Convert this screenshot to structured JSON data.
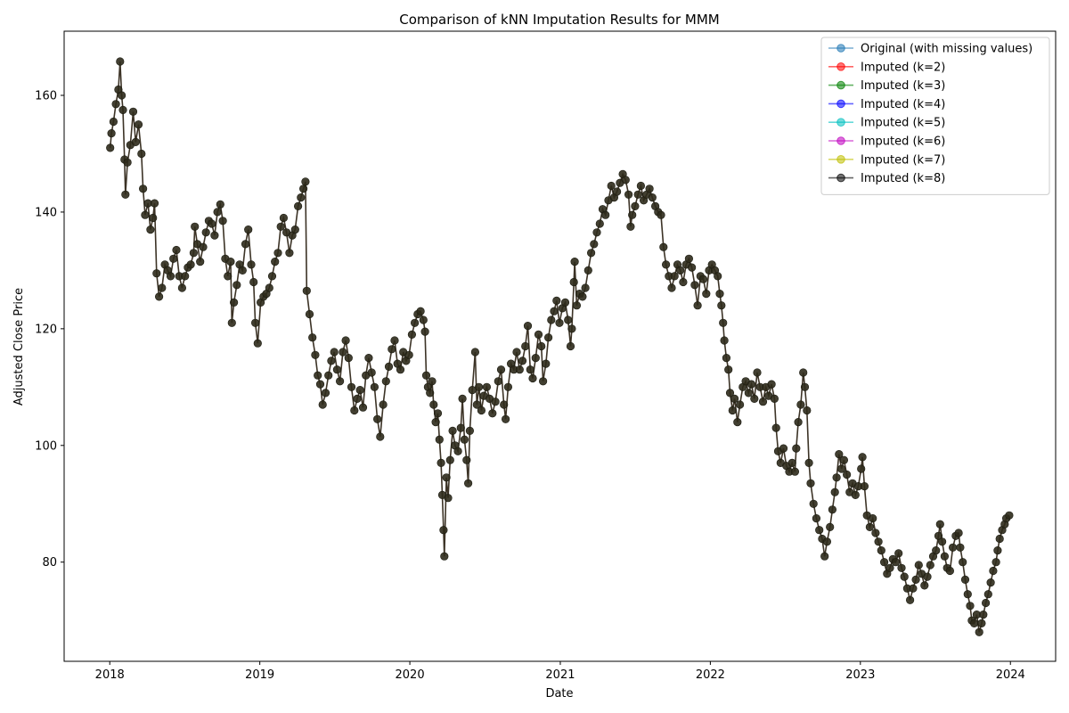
{
  "chart_data": {
    "type": "line",
    "title": "Comparison of kNN Imputation Results for MMM",
    "xlabel": "Date",
    "ylabel": "Adjusted Close Price",
    "xlim": [
      "2017-09-12",
      "2024-04-20"
    ],
    "ylim": [
      63,
      171
    ],
    "x_ticks": [
      "2018",
      "2019",
      "2020",
      "2021",
      "2022",
      "2023",
      "2024"
    ],
    "y_ticks": [
      80,
      100,
      120,
      140,
      160
    ],
    "grid": false,
    "legend_position": "top-right",
    "legend": [
      {
        "label": "Original (with missing values)",
        "color": "#1f77b4"
      },
      {
        "label": "Imputed (k=2)",
        "color": "#ff0000"
      },
      {
        "label": "Imputed (k=3)",
        "color": "#008000"
      },
      {
        "label": "Imputed (k=4)",
        "color": "#0000ff"
      },
      {
        "label": "Imputed (k=5)",
        "color": "#00bfbf"
      },
      {
        "label": "Imputed (k=6)",
        "color": "#bf00bf"
      },
      {
        "label": "Imputed (k=7)",
        "color": "#bfbf00"
      },
      {
        "label": "Imputed (k=8)",
        "color": "#000000"
      }
    ],
    "points": [
      [
        "2018-01-02",
        151
      ],
      [
        "2018-01-05",
        153.5
      ],
      [
        "2018-01-10",
        155.5
      ],
      [
        "2018-01-16",
        158.5
      ],
      [
        "2018-01-22",
        161
      ],
      [
        "2018-01-26",
        165.8
      ],
      [
        "2018-01-30",
        160
      ],
      [
        "2018-02-02",
        157.5
      ],
      [
        "2018-02-06",
        149
      ],
      [
        "2018-02-08",
        143
      ],
      [
        "2018-02-13",
        148.5
      ],
      [
        "2018-02-20",
        151.5
      ],
      [
        "2018-02-27",
        157.2
      ],
      [
        "2018-03-05",
        152
      ],
      [
        "2018-03-12",
        155
      ],
      [
        "2018-03-19",
        150
      ],
      [
        "2018-03-23",
        144
      ],
      [
        "2018-03-28",
        139.5
      ],
      [
        "2018-04-04",
        141.5
      ],
      [
        "2018-04-10",
        137
      ],
      [
        "2018-04-16",
        139
      ],
      [
        "2018-04-20",
        141.5
      ],
      [
        "2018-04-25",
        129.5
      ],
      [
        "2018-05-01",
        125.5
      ],
      [
        "2018-05-08",
        127
      ],
      [
        "2018-05-15",
        131
      ],
      [
        "2018-05-22",
        130
      ],
      [
        "2018-05-29",
        129
      ],
      [
        "2018-06-05",
        132
      ],
      [
        "2018-06-12",
        133.5
      ],
      [
        "2018-06-19",
        129
      ],
      [
        "2018-06-26",
        127
      ],
      [
        "2018-07-03",
        129
      ],
      [
        "2018-07-10",
        130.5
      ],
      [
        "2018-07-17",
        131
      ],
      [
        "2018-07-24",
        133
      ],
      [
        "2018-07-27",
        137.5
      ],
      [
        "2018-08-02",
        134.5
      ],
      [
        "2018-08-09",
        131.5
      ],
      [
        "2018-08-16",
        134
      ],
      [
        "2018-08-23",
        136.5
      ],
      [
        "2018-08-30",
        138.5
      ],
      [
        "2018-09-06",
        138
      ],
      [
        "2018-09-13",
        136
      ],
      [
        "2018-09-20",
        140
      ],
      [
        "2018-09-27",
        141.3
      ],
      [
        "2018-10-03",
        138.5
      ],
      [
        "2018-10-09",
        132
      ],
      [
        "2018-10-15",
        129
      ],
      [
        "2018-10-22",
        131.5
      ],
      [
        "2018-10-25",
        121
      ],
      [
        "2018-10-30",
        124.5
      ],
      [
        "2018-11-06",
        127.5
      ],
      [
        "2018-11-13",
        131
      ],
      [
        "2018-11-20",
        130
      ],
      [
        "2018-11-27",
        134.5
      ],
      [
        "2018-12-04",
        137
      ],
      [
        "2018-12-11",
        131
      ],
      [
        "2018-12-17",
        128
      ],
      [
        "2018-12-21",
        121
      ],
      [
        "2018-12-27",
        117.5
      ],
      [
        "2019-01-03",
        124.5
      ],
      [
        "2019-01-10",
        125.5
      ],
      [
        "2019-01-17",
        126
      ],
      [
        "2019-01-24",
        127
      ],
      [
        "2019-01-31",
        129
      ],
      [
        "2019-02-07",
        131.5
      ],
      [
        "2019-02-14",
        133
      ],
      [
        "2019-02-21",
        137.5
      ],
      [
        "2019-02-28",
        139
      ],
      [
        "2019-03-07",
        136.5
      ],
      [
        "2019-03-14",
        133
      ],
      [
        "2019-03-21",
        136
      ],
      [
        "2019-03-28",
        137
      ],
      [
        "2019-04-04",
        141
      ],
      [
        "2019-04-11",
        142.5
      ],
      [
        "2019-04-17",
        144
      ],
      [
        "2019-04-22",
        145.2
      ],
      [
        "2019-04-25",
        126.5
      ],
      [
        "2019-05-02",
        122.5
      ],
      [
        "2019-05-09",
        118.5
      ],
      [
        "2019-05-16",
        115.5
      ],
      [
        "2019-05-22",
        112
      ],
      [
        "2019-05-28",
        110.5
      ],
      [
        "2019-06-03",
        107
      ],
      [
        "2019-06-10",
        109
      ],
      [
        "2019-06-17",
        112
      ],
      [
        "2019-06-24",
        114.5
      ],
      [
        "2019-07-01",
        116
      ],
      [
        "2019-07-08",
        113
      ],
      [
        "2019-07-15",
        111
      ],
      [
        "2019-07-22",
        116
      ],
      [
        "2019-07-29",
        118
      ],
      [
        "2019-08-05",
        115
      ],
      [
        "2019-08-12",
        110
      ],
      [
        "2019-08-19",
        106
      ],
      [
        "2019-08-26",
        108
      ],
      [
        "2019-09-02",
        109.5
      ],
      [
        "2019-09-09",
        106.5
      ],
      [
        "2019-09-16",
        112
      ],
      [
        "2019-09-23",
        115
      ],
      [
        "2019-09-30",
        112.5
      ],
      [
        "2019-10-07",
        110
      ],
      [
        "2019-10-14",
        104.5
      ],
      [
        "2019-10-21",
        101.5
      ],
      [
        "2019-10-28",
        107
      ],
      [
        "2019-11-04",
        111
      ],
      [
        "2019-11-11",
        113.5
      ],
      [
        "2019-11-18",
        116.5
      ],
      [
        "2019-11-25",
        118
      ],
      [
        "2019-12-02",
        114
      ],
      [
        "2019-12-09",
        113
      ],
      [
        "2019-12-16",
        116
      ],
      [
        "2019-12-23",
        114.5
      ],
      [
        "2019-12-30",
        115.5
      ],
      [
        "2020-01-06",
        119
      ],
      [
        "2020-01-13",
        121
      ],
      [
        "2020-01-20",
        122.5
      ],
      [
        "2020-01-27",
        123
      ],
      [
        "2020-02-03",
        121.5
      ],
      [
        "2020-02-07",
        119.5
      ],
      [
        "2020-02-10",
        112
      ],
      [
        "2020-02-14",
        110
      ],
      [
        "2020-02-19",
        109
      ],
      [
        "2020-02-24",
        111
      ],
      [
        "2020-02-28",
        107
      ],
      [
        "2020-03-04",
        104
      ],
      [
        "2020-03-09",
        105.5
      ],
      [
        "2020-03-13",
        101
      ],
      [
        "2020-03-17",
        97
      ],
      [
        "2020-03-20",
        91.5
      ],
      [
        "2020-03-23",
        85.5
      ],
      [
        "2020-03-25",
        81
      ],
      [
        "2020-03-30",
        94.5
      ],
      [
        "2020-04-03",
        91
      ],
      [
        "2020-04-08",
        97.5
      ],
      [
        "2020-04-14",
        102.5
      ],
      [
        "2020-04-20",
        100
      ],
      [
        "2020-04-27",
        99
      ],
      [
        "2020-05-04",
        103
      ],
      [
        "2020-05-08",
        108
      ],
      [
        "2020-05-13",
        101
      ],
      [
        "2020-05-18",
        97.5
      ],
      [
        "2020-05-22",
        93.5
      ],
      [
        "2020-05-26",
        102.5
      ],
      [
        "2020-06-01",
        109.5
      ],
      [
        "2020-06-08",
        116
      ],
      [
        "2020-06-12",
        107
      ],
      [
        "2020-06-17",
        110
      ],
      [
        "2020-06-23",
        106
      ],
      [
        "2020-06-29",
        108.5
      ],
      [
        "2020-07-06",
        110
      ],
      [
        "2020-07-13",
        108
      ],
      [
        "2020-07-20",
        105.5
      ],
      [
        "2020-07-27",
        107.5
      ],
      [
        "2020-08-03",
        111
      ],
      [
        "2020-08-10",
        113
      ],
      [
        "2020-08-17",
        107
      ],
      [
        "2020-08-21",
        104.5
      ],
      [
        "2020-08-27",
        110
      ],
      [
        "2020-09-03",
        114
      ],
      [
        "2020-09-10",
        113
      ],
      [
        "2020-09-17",
        116
      ],
      [
        "2020-09-24",
        113
      ],
      [
        "2020-10-01",
        114.5
      ],
      [
        "2020-10-08",
        117
      ],
      [
        "2020-10-14",
        120.5
      ],
      [
        "2020-10-20",
        113
      ],
      [
        "2020-10-26",
        111.5
      ],
      [
        "2020-11-02",
        115
      ],
      [
        "2020-11-09",
        119
      ],
      [
        "2020-11-16",
        117
      ],
      [
        "2020-11-20",
        111
      ],
      [
        "2020-11-27",
        114
      ],
      [
        "2020-12-03",
        118.5
      ],
      [
        "2020-12-10",
        121.5
      ],
      [
        "2020-12-17",
        123
      ],
      [
        "2020-12-23",
        124.8
      ],
      [
        "2020-12-30",
        121
      ],
      [
        "2021-01-06",
        123.5
      ],
      [
        "2021-01-13",
        124.5
      ],
      [
        "2021-01-20",
        121.5
      ],
      [
        "2021-01-26",
        117
      ],
      [
        "2021-01-29",
        120
      ],
      [
        "2021-02-03",
        128
      ],
      [
        "2021-02-05",
        131.5
      ],
      [
        "2021-02-10",
        124
      ],
      [
        "2021-02-17",
        126
      ],
      [
        "2021-02-24",
        125.5
      ],
      [
        "2021-03-03",
        127
      ],
      [
        "2021-03-10",
        130
      ],
      [
        "2021-03-17",
        133
      ],
      [
        "2021-03-24",
        134.5
      ],
      [
        "2021-03-31",
        136.5
      ],
      [
        "2021-04-07",
        138
      ],
      [
        "2021-04-14",
        140.5
      ],
      [
        "2021-04-21",
        139.5
      ],
      [
        "2021-04-28",
        142
      ],
      [
        "2021-05-05",
        144.5
      ],
      [
        "2021-05-12",
        142.5
      ],
      [
        "2021-05-19",
        143.5
      ],
      [
        "2021-05-26",
        145
      ],
      [
        "2021-06-02",
        146.5
      ],
      [
        "2021-06-09",
        145.5
      ],
      [
        "2021-06-16",
        143
      ],
      [
        "2021-06-21",
        137.5
      ],
      [
        "2021-06-25",
        139.5
      ],
      [
        "2021-07-02",
        141
      ],
      [
        "2021-07-09",
        143
      ],
      [
        "2021-07-16",
        144.5
      ],
      [
        "2021-07-23",
        142
      ],
      [
        "2021-07-30",
        143
      ],
      [
        "2021-08-06",
        144
      ],
      [
        "2021-08-13",
        142.5
      ],
      [
        "2021-08-20",
        141
      ],
      [
        "2021-08-27",
        140
      ],
      [
        "2021-09-03",
        139.5
      ],
      [
        "2021-09-09",
        134
      ],
      [
        "2021-09-15",
        131
      ],
      [
        "2021-09-22",
        129
      ],
      [
        "2021-09-29",
        127
      ],
      [
        "2021-10-06",
        129
      ],
      [
        "2021-10-13",
        131
      ],
      [
        "2021-10-20",
        130
      ],
      [
        "2021-10-27",
        128
      ],
      [
        "2021-11-03",
        131
      ],
      [
        "2021-11-10",
        132
      ],
      [
        "2021-11-17",
        130.5
      ],
      [
        "2021-11-24",
        127.5
      ],
      [
        "2021-12-01",
        124
      ],
      [
        "2021-12-08",
        129
      ],
      [
        "2021-12-15",
        128.5
      ],
      [
        "2021-12-22",
        126
      ],
      [
        "2021-12-29",
        130
      ],
      [
        "2022-01-05",
        131
      ],
      [
        "2022-01-12",
        130
      ],
      [
        "2022-01-19",
        129
      ],
      [
        "2022-01-24",
        126
      ],
      [
        "2022-01-28",
        124
      ],
      [
        "2022-02-01",
        121
      ],
      [
        "2022-02-04",
        118
      ],
      [
        "2022-02-09",
        115
      ],
      [
        "2022-02-14",
        113
      ],
      [
        "2022-02-18",
        109
      ],
      [
        "2022-02-24",
        106
      ],
      [
        "2022-03-01",
        108
      ],
      [
        "2022-03-08",
        104
      ],
      [
        "2022-03-14",
        107
      ],
      [
        "2022-03-21",
        110
      ],
      [
        "2022-03-28",
        111
      ],
      [
        "2022-04-04",
        109
      ],
      [
        "2022-04-11",
        110.5
      ],
      [
        "2022-04-18",
        108
      ],
      [
        "2022-04-25",
        112.5
      ],
      [
        "2022-05-02",
        110
      ],
      [
        "2022-05-09",
        107.5
      ],
      [
        "2022-05-16",
        110
      ],
      [
        "2022-05-23",
        108.5
      ],
      [
        "2022-05-30",
        110.5
      ],
      [
        "2022-06-06",
        108
      ],
      [
        "2022-06-10",
        103
      ],
      [
        "2022-06-15",
        99
      ],
      [
        "2022-06-21",
        97
      ],
      [
        "2022-06-28",
        99.5
      ],
      [
        "2022-07-05",
        96.5
      ],
      [
        "2022-07-12",
        95.5
      ],
      [
        "2022-07-19",
        97
      ],
      [
        "2022-07-26",
        95.5
      ],
      [
        "2022-07-29",
        99.5
      ],
      [
        "2022-08-03",
        104
      ],
      [
        "2022-08-09",
        107
      ],
      [
        "2022-08-15",
        112.5
      ],
      [
        "2022-08-19",
        110
      ],
      [
        "2022-08-24",
        106
      ],
      [
        "2022-08-29",
        97
      ],
      [
        "2022-09-02",
        93.5
      ],
      [
        "2022-09-09",
        90
      ],
      [
        "2022-09-16",
        87.5
      ],
      [
        "2022-09-23",
        85.5
      ],
      [
        "2022-09-30",
        84
      ],
      [
        "2022-10-06",
        81
      ],
      [
        "2022-10-12",
        83.5
      ],
      [
        "2022-10-19",
        86
      ],
      [
        "2022-10-25",
        89
      ],
      [
        "2022-10-31",
        92
      ],
      [
        "2022-11-04",
        94.5
      ],
      [
        "2022-11-10",
        98.5
      ],
      [
        "2022-11-16",
        96
      ],
      [
        "2022-11-22",
        97.5
      ],
      [
        "2022-11-29",
        95
      ],
      [
        "2022-12-06",
        92
      ],
      [
        "2022-12-13",
        93.5
      ],
      [
        "2022-12-20",
        91.5
      ],
      [
        "2022-12-27",
        93
      ],
      [
        "2023-01-03",
        96
      ],
      [
        "2023-01-06",
        98
      ],
      [
        "2023-01-11",
        93
      ],
      [
        "2023-01-17",
        88
      ],
      [
        "2023-01-24",
        86
      ],
      [
        "2023-01-31",
        87.5
      ],
      [
        "2023-02-07",
        85
      ],
      [
        "2023-02-14",
        83.5
      ],
      [
        "2023-02-21",
        82
      ],
      [
        "2023-02-28",
        80
      ],
      [
        "2023-03-07",
        78
      ],
      [
        "2023-03-14",
        79
      ],
      [
        "2023-03-21",
        80.5
      ],
      [
        "2023-03-28",
        80
      ],
      [
        "2023-04-04",
        81.5
      ],
      [
        "2023-04-11",
        79
      ],
      [
        "2023-04-18",
        77.5
      ],
      [
        "2023-04-25",
        75.5
      ],
      [
        "2023-05-02",
        73.5
      ],
      [
        "2023-05-09",
        75.5
      ],
      [
        "2023-05-16",
        77
      ],
      [
        "2023-05-23",
        79.5
      ],
      [
        "2023-05-30",
        78
      ],
      [
        "2023-06-06",
        76
      ],
      [
        "2023-06-13",
        77.5
      ],
      [
        "2023-06-20",
        79.5
      ],
      [
        "2023-06-27",
        81
      ],
      [
        "2023-07-04",
        82
      ],
      [
        "2023-07-10",
        84.5
      ],
      [
        "2023-07-14",
        86.5
      ],
      [
        "2023-07-19",
        83.5
      ],
      [
        "2023-07-25",
        81
      ],
      [
        "2023-07-31",
        79
      ],
      [
        "2023-08-07",
        78.5
      ],
      [
        "2023-08-14",
        82.5
      ],
      [
        "2023-08-21",
        84.5
      ],
      [
        "2023-08-28",
        85
      ],
      [
        "2023-09-01",
        82.5
      ],
      [
        "2023-09-07",
        80
      ],
      [
        "2023-09-13",
        77
      ],
      [
        "2023-09-19",
        74.5
      ],
      [
        "2023-09-25",
        72.5
      ],
      [
        "2023-09-29",
        70
      ],
      [
        "2023-10-05",
        69.5
      ],
      [
        "2023-10-11",
        71
      ],
      [
        "2023-10-17",
        68
      ],
      [
        "2023-10-23",
        69.5
      ],
      [
        "2023-10-27",
        71
      ],
      [
        "2023-11-02",
        73
      ],
      [
        "2023-11-08",
        74.5
      ],
      [
        "2023-11-14",
        76.5
      ],
      [
        "2023-11-20",
        78.5
      ],
      [
        "2023-11-27",
        80
      ],
      [
        "2023-12-01",
        82
      ],
      [
        "2023-12-06",
        84
      ],
      [
        "2023-12-12",
        85.5
      ],
      [
        "2023-12-18",
        86.5
      ],
      [
        "2023-12-22",
        87.5
      ],
      [
        "2023-12-29",
        88
      ]
    ]
  }
}
